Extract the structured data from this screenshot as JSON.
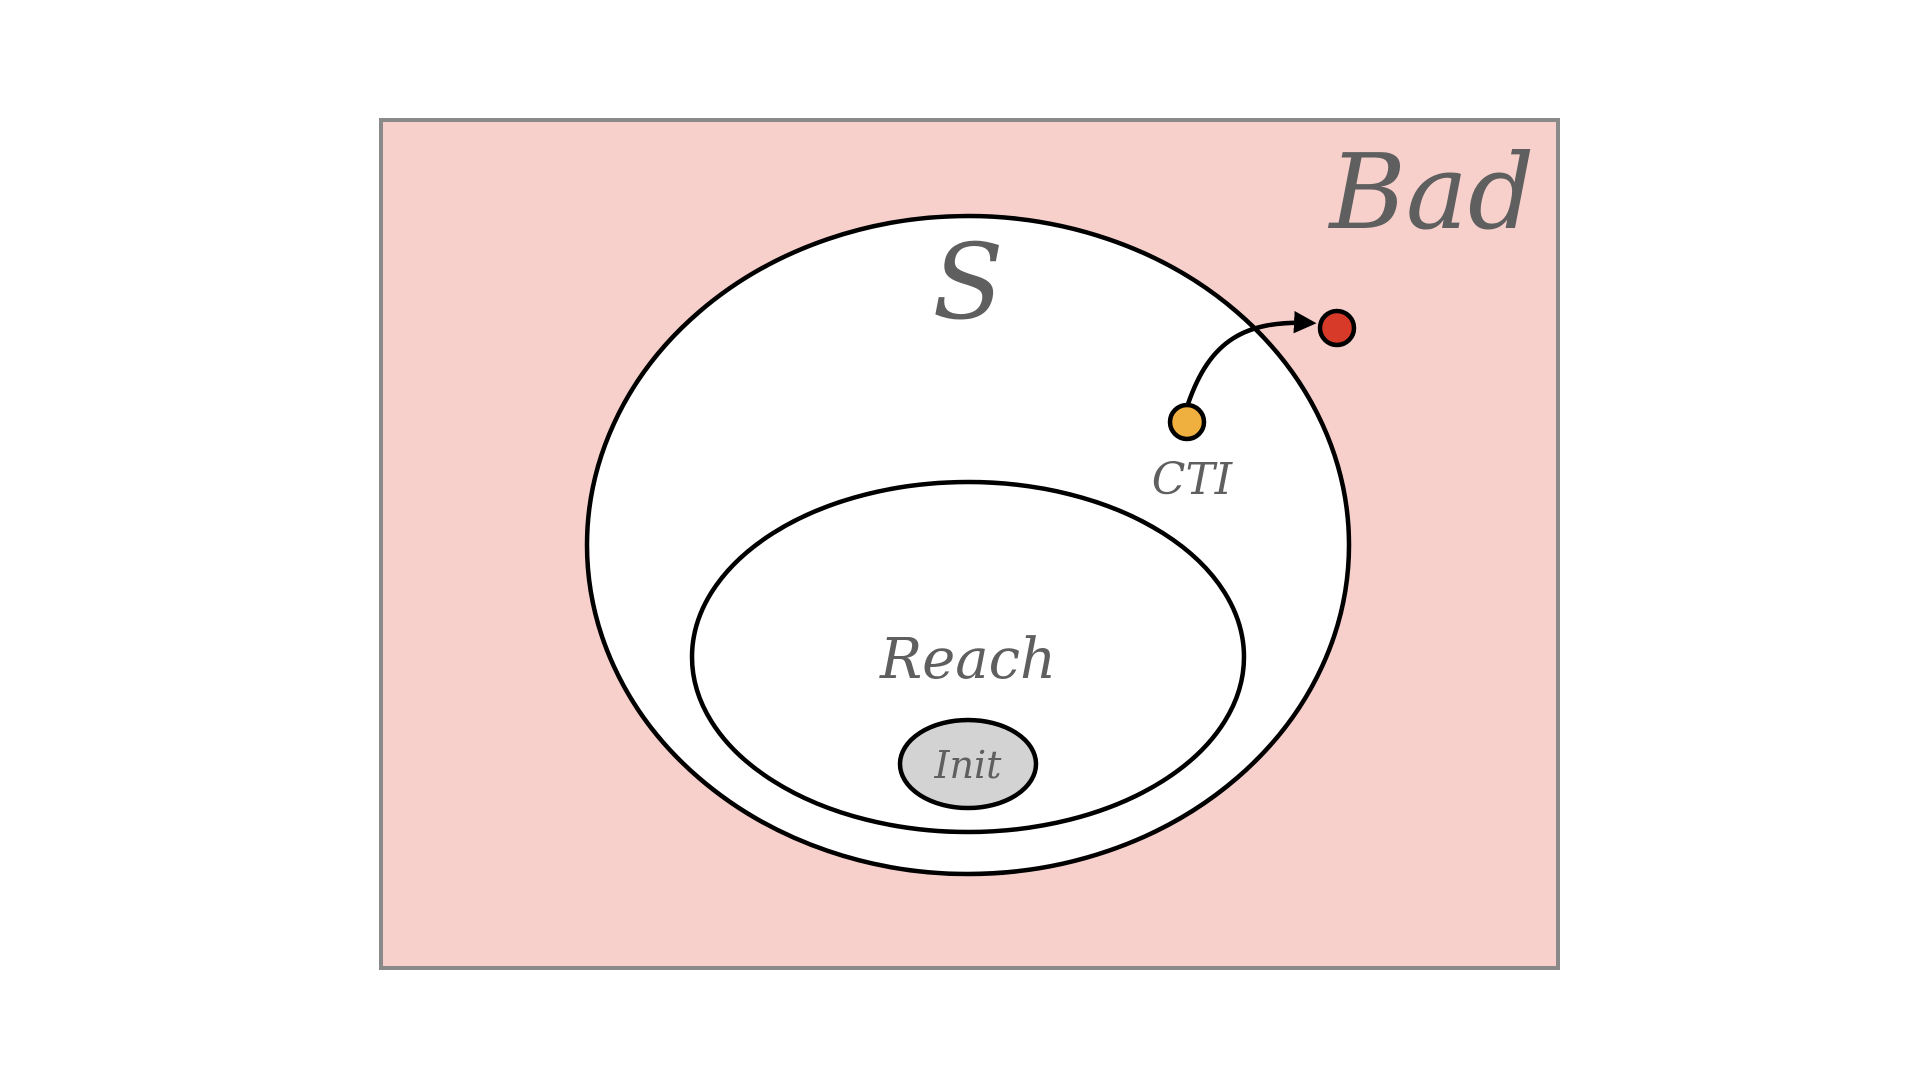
{
  "labels": {
    "bad": "Bad",
    "safe_set": "S",
    "reach": "Reach",
    "init": "Init",
    "cti": "CTI"
  },
  "colors": {
    "bad_region": "#f7d0cc",
    "bad_border": "#8a8a8a",
    "set_fill": "#ffffff",
    "init_fill": "#d3d3d3",
    "outline": "#000000",
    "label_text": "#5f5f5f",
    "cti_point": "#f0b040",
    "bad_point": "#d83a2a"
  }
}
